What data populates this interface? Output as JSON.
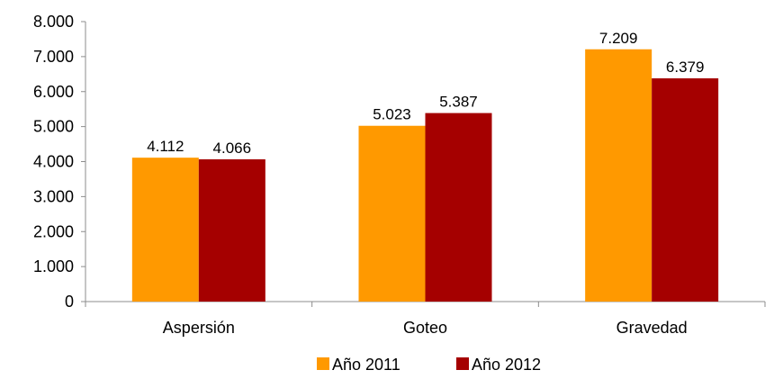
{
  "chart_data": {
    "type": "bar",
    "categories": [
      "Aspersión",
      "Goteo",
      "Gravedad"
    ],
    "series": [
      {
        "name": "Año 2011",
        "color": "#FF9900",
        "values": [
          4112,
          5023,
          7209
        ],
        "labels": [
          "4.112",
          "5.023",
          "7.209"
        ]
      },
      {
        "name": "Año 2012",
        "color": "#A50000",
        "values": [
          4066,
          5387,
          6379
        ],
        "labels": [
          "4.066",
          "5.387",
          "6.379"
        ]
      }
    ],
    "yticks": [
      0,
      1000,
      2000,
      3000,
      4000,
      5000,
      6000,
      7000,
      8000
    ],
    "ytick_labels": [
      "0",
      "1.000",
      "2.000",
      "3.000",
      "4.000",
      "5.000",
      "6.000",
      "7.000",
      "8.000"
    ],
    "ylim": [
      0,
      8000
    ],
    "grid": false,
    "legend_position": "bottom"
  }
}
